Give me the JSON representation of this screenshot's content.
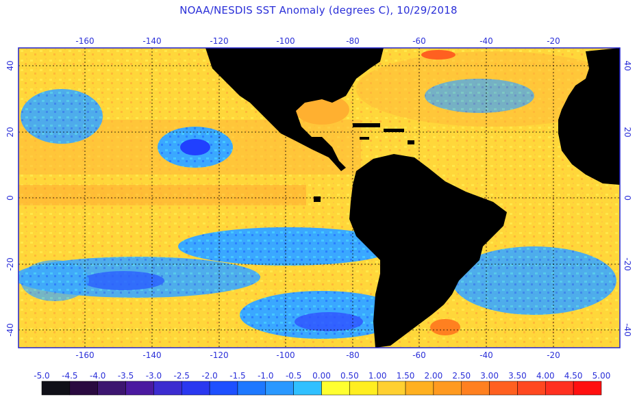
{
  "title": "NOAA/NESDIS SST Anomaly (degrees C), 10/29/2018",
  "axes": {
    "lon_ticks": [
      "-160",
      "-140",
      "-120",
      "-100",
      "-80",
      "-60",
      "-40",
      "-20"
    ],
    "lat_ticks_left": [
      "40",
      "20",
      "0",
      "-20",
      "-40"
    ],
    "lat_ticks_right": [
      "40",
      "20",
      "0",
      "-20",
      "-40"
    ]
  },
  "colorbar": {
    "labels": [
      "-5.0",
      "-4.5",
      "-4.0",
      "-3.5",
      "-3.0",
      "-2.5",
      "-2.0",
      "-1.5",
      "-1.0",
      "-0.5",
      "0.00",
      "0.50",
      "1.00",
      "1.50",
      "2.00",
      "2.50",
      "3.00",
      "3.50",
      "4.00",
      "4.50",
      "5.00"
    ],
    "colors": [
      "#101018",
      "#2a0a40",
      "#3d1670",
      "#4b1aa0",
      "#3c2cd0",
      "#2a38f0",
      "#1e50ff",
      "#1e78ff",
      "#2a98ff",
      "#30c0ff",
      "#ffff30",
      "#ffee20",
      "#ffd030",
      "#ffb020",
      "#ff9a20",
      "#ff8020",
      "#ff6020",
      "#ff4820",
      "#ff3020",
      "#ff1010"
    ]
  },
  "colors": {
    "land": "#000000",
    "frame": "#2222cc",
    "grid": "#000000",
    "label": "#2a2fd8"
  }
}
